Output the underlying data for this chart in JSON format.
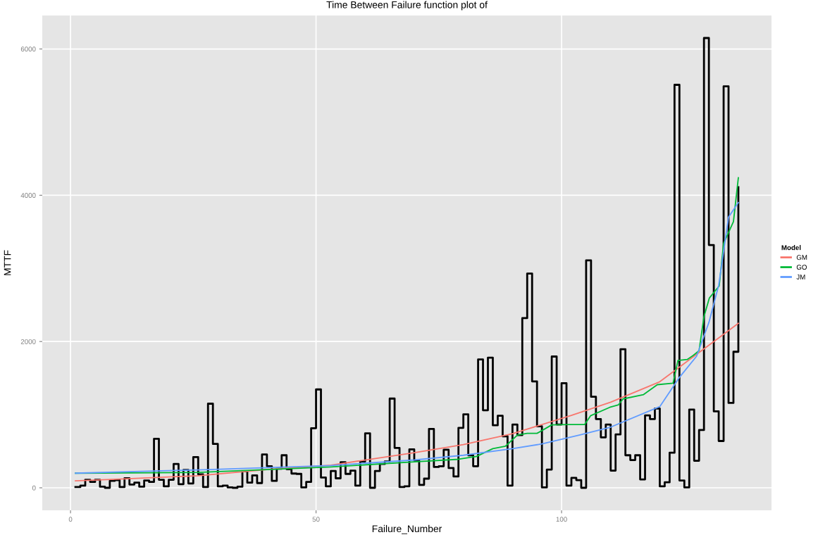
{
  "chart_data": {
    "type": "line",
    "title": "Time Between Failure function plot of",
    "xlabel": "Failure_Number",
    "ylabel": "MTTF",
    "legend_title": "Model",
    "xlim": [
      -5.75,
      142.75
    ],
    "xticks": [
      0,
      50,
      100
    ],
    "ylim": [
      -308,
      6458
    ],
    "yticks": [
      0,
      2000,
      4000,
      6000
    ],
    "grid": true,
    "legend": "right",
    "marker": "none",
    "line_style": "solid",
    "series": [
      {
        "type": "step",
        "color": "#000000",
        "x": [
          1,
          2,
          3,
          4,
          5,
          6,
          7,
          8,
          9,
          10,
          11,
          12,
          13,
          14,
          15,
          16,
          17,
          18,
          19,
          20,
          21,
          22,
          23,
          24,
          25,
          26,
          27,
          28,
          29,
          30,
          31,
          32,
          33,
          34,
          35,
          36,
          37,
          38,
          39,
          40,
          41,
          42,
          43,
          44,
          45,
          46,
          47,
          48,
          49,
          50,
          51,
          52,
          53,
          54,
          55,
          56,
          57,
          58,
          59,
          60,
          61,
          62,
          63,
          64,
          65,
          66,
          67,
          68,
          69,
          70,
          71,
          72,
          73,
          74,
          75,
          76,
          77,
          78,
          79,
          80,
          81,
          82,
          83,
          84,
          85,
          86,
          87,
          88,
          89,
          90,
          91,
          92,
          93,
          94,
          95,
          96,
          97,
          98,
          99,
          100,
          101,
          102,
          103,
          104,
          105,
          106,
          107,
          108,
          109,
          110,
          111,
          112,
          113,
          114,
          115,
          116,
          117,
          118,
          119,
          120,
          121,
          122,
          123,
          124,
          125,
          126,
          127,
          128,
          129,
          130,
          131,
          132,
          133,
          134,
          135,
          136
        ],
        "values": [
          10,
          30,
          110,
          80,
          110,
          15,
          0,
          95,
          105,
          10,
          130,
          45,
          70,
          15,
          100,
          80,
          670,
          110,
          20,
          110,
          325,
          50,
          245,
          60,
          420,
          185,
          10,
          1150,
          600,
          20,
          30,
          5,
          0,
          15,
          225,
          70,
          170,
          65,
          455,
          295,
          95,
          260,
          445,
          255,
          195,
          190,
          5,
          80,
          815,
          1345,
          140,
          20,
          230,
          130,
          350,
          190,
          235,
          30,
          360,
          745,
          0,
          230,
          325,
          360,
          1220,
          545,
          10,
          20,
          525,
          375,
          40,
          125,
          805,
          285,
          295,
          520,
          270,
          155,
          820,
          1005,
          445,
          295,
          1755,
          1060,
          1780,
          855,
          985,
          705,
          30,
          865,
          720,
          2320,
          2930,
          1455,
          840,
          5,
          250,
          1795,
          865,
          1430,
          30,
          135,
          105,
          0,
          3110,
          1245,
          940,
          690,
          865,
          235,
          730,
          1895,
          445,
          380,
          445,
          115,
          990,
          940,
          1085,
          20,
          75,
          480,
          5510,
          100,
          5,
          1070,
          370,
          790,
          6150,
          3320,
          1045,
          640,
          5490,
          1160,
          1860,
          4110
        ]
      },
      {
        "name": "GM",
        "color": "#F8766D",
        "x": [
          1,
          10,
          26,
          40,
          53,
          70,
          80,
          90,
          102,
          110,
          120,
          128,
          136
        ],
        "values": [
          95,
          120,
          165,
          250,
          310,
          480,
          590,
          740,
          990,
          1170,
          1450,
          1850,
          2250
        ]
      },
      {
        "name": "GO",
        "color": "#00BA38",
        "x": [
          1,
          26,
          53,
          70,
          79,
          82.7,
          86,
          88.6,
          91,
          93,
          95,
          98,
          101.6,
          104.7,
          105.9,
          109.8,
          111.6,
          112.5,
          116.7,
          119.5,
          122.7,
          123.7,
          125.6,
          126.8,
          128,
          129,
          130.1,
          132.1,
          133,
          135,
          136
        ],
        "values": [
          200,
          210,
          285,
          355,
          390,
          430,
          535,
          570,
          720,
          745,
          745,
          860,
          865,
          865,
          985,
          1100,
          1135,
          1215,
          1275,
          1410,
          1430,
          1740,
          1755,
          1810,
          1875,
          2340,
          2595,
          2760,
          3340,
          3640,
          4240
        ]
      },
      {
        "name": "JM",
        "color": "#619CFF",
        "x": [
          1,
          26,
          53,
          70,
          80,
          90,
          96,
          103.6,
          110,
          120,
          124,
          127.5,
          130,
          132,
          134,
          136
        ],
        "values": [
          200,
          245,
          305,
          380,
          445,
          535,
          600,
          720,
          830,
          1110,
          1510,
          1800,
          2260,
          2770,
          3700,
          3900
        ]
      }
    ]
  }
}
